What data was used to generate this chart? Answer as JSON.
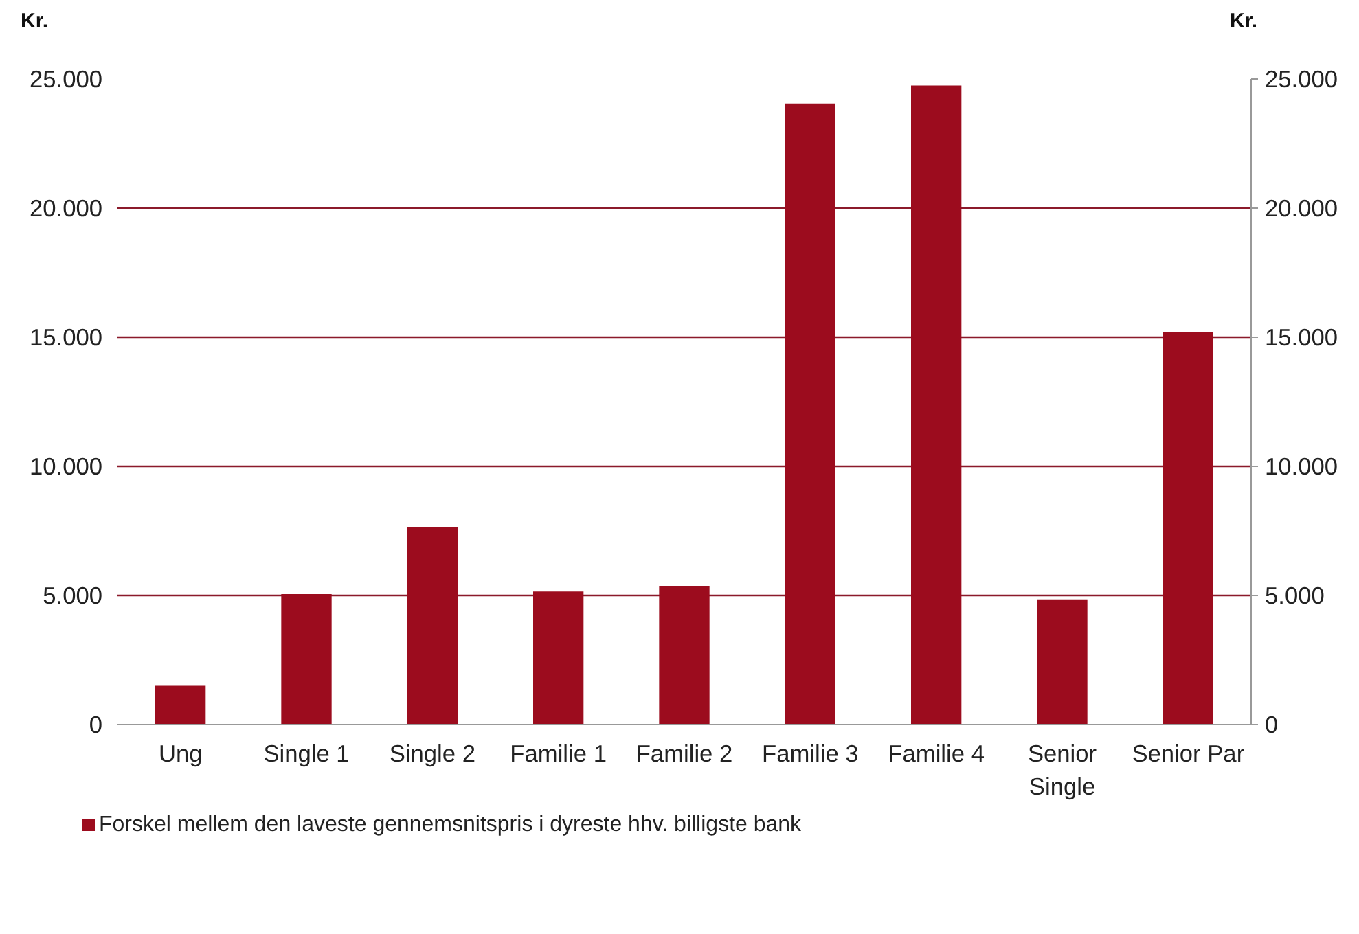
{
  "chart_data": {
    "type": "bar",
    "ylabel": "Kr.",
    "y2label": "Kr.",
    "categories": [
      "Ung",
      "Single 1",
      "Single 2",
      "Familie 1",
      "Familie 2",
      "Familie 3",
      "Familie 4",
      "Senior\nSingle",
      "Senior Par"
    ],
    "series": [
      {
        "name": "Forskel mellem den laveste gennemsnitspris i dyreste hhv. billigste bank",
        "color": "#9c0c1e",
        "values": [
          1500,
          5050,
          7650,
          5150,
          5350,
          24050,
          24750,
          4850,
          15200
        ]
      }
    ],
    "ylim": [
      0,
      25000
    ],
    "yticks": [
      {
        "value": 0,
        "label": "0"
      },
      {
        "value": 5000,
        "label": "5.000"
      },
      {
        "value": 10000,
        "label": "10.000"
      },
      {
        "value": 15000,
        "label": "15.000"
      },
      {
        "value": 20000,
        "label": "20.000"
      },
      {
        "value": 25000,
        "label": "25.000"
      }
    ],
    "y2lim": [
      0,
      25000
    ],
    "y2ticks": [
      {
        "value": 0,
        "label": "0"
      },
      {
        "value": 5000,
        "label": "5.000"
      },
      {
        "value": 10000,
        "label": "10.000"
      },
      {
        "value": 15000,
        "label": "15.000"
      },
      {
        "value": 20000,
        "label": "20.000"
      },
      {
        "value": 25000,
        "label": "25.000"
      }
    ],
    "grid": "y",
    "legend": "bottom left"
  }
}
